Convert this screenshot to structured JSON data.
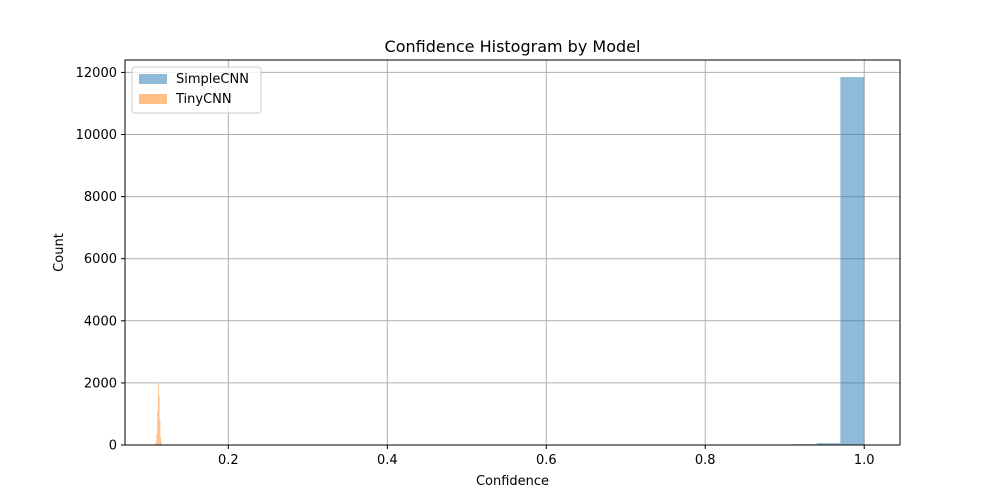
{
  "chart_data": {
    "type": "bar",
    "title": "Confidence Histogram by Model",
    "xlabel": "Confidence",
    "ylabel": "Count",
    "xlim": [
      0.07,
      1.045
    ],
    "ylim": [
      0,
      12400
    ],
    "x_ticks": [
      0.2,
      0.4,
      0.6,
      0.8,
      1.0
    ],
    "x_tick_labels": [
      "0.2",
      "0.4",
      "0.6",
      "0.8",
      "1.0"
    ],
    "y_ticks": [
      0,
      2000,
      4000,
      6000,
      8000,
      10000,
      12000
    ],
    "y_tick_labels": [
      "0",
      "2000",
      "4000",
      "6000",
      "8000",
      "10000",
      "12000"
    ],
    "grid": true,
    "legend_position": "top-left",
    "series": [
      {
        "name": "SimpleCNN",
        "color": "#1f77b4",
        "opacity": 0.5,
        "bins": [
          {
            "x0": 0.879,
            "x1": 0.91,
            "count": 15
          },
          {
            "x0": 0.91,
            "x1": 0.94,
            "count": 25
          },
          {
            "x0": 0.94,
            "x1": 0.97,
            "count": 60
          },
          {
            "x0": 0.97,
            "x1": 1.0,
            "count": 11850
          }
        ]
      },
      {
        "name": "TinyCNN",
        "color": "#ff7f0e",
        "opacity": 0.5,
        "bins": [
          {
            "x0": 0.1085,
            "x1": 0.1095,
            "count": 80
          },
          {
            "x0": 0.1095,
            "x1": 0.1105,
            "count": 350
          },
          {
            "x0": 0.1105,
            "x1": 0.1115,
            "count": 1100
          },
          {
            "x0": 0.1115,
            "x1": 0.1125,
            "count": 2000
          },
          {
            "x0": 0.1125,
            "x1": 0.1135,
            "count": 1600
          },
          {
            "x0": 0.1135,
            "x1": 0.1145,
            "count": 800
          },
          {
            "x0": 0.1145,
            "x1": 0.1155,
            "count": 250
          },
          {
            "x0": 0.1155,
            "x1": 0.1165,
            "count": 60
          }
        ]
      }
    ]
  }
}
